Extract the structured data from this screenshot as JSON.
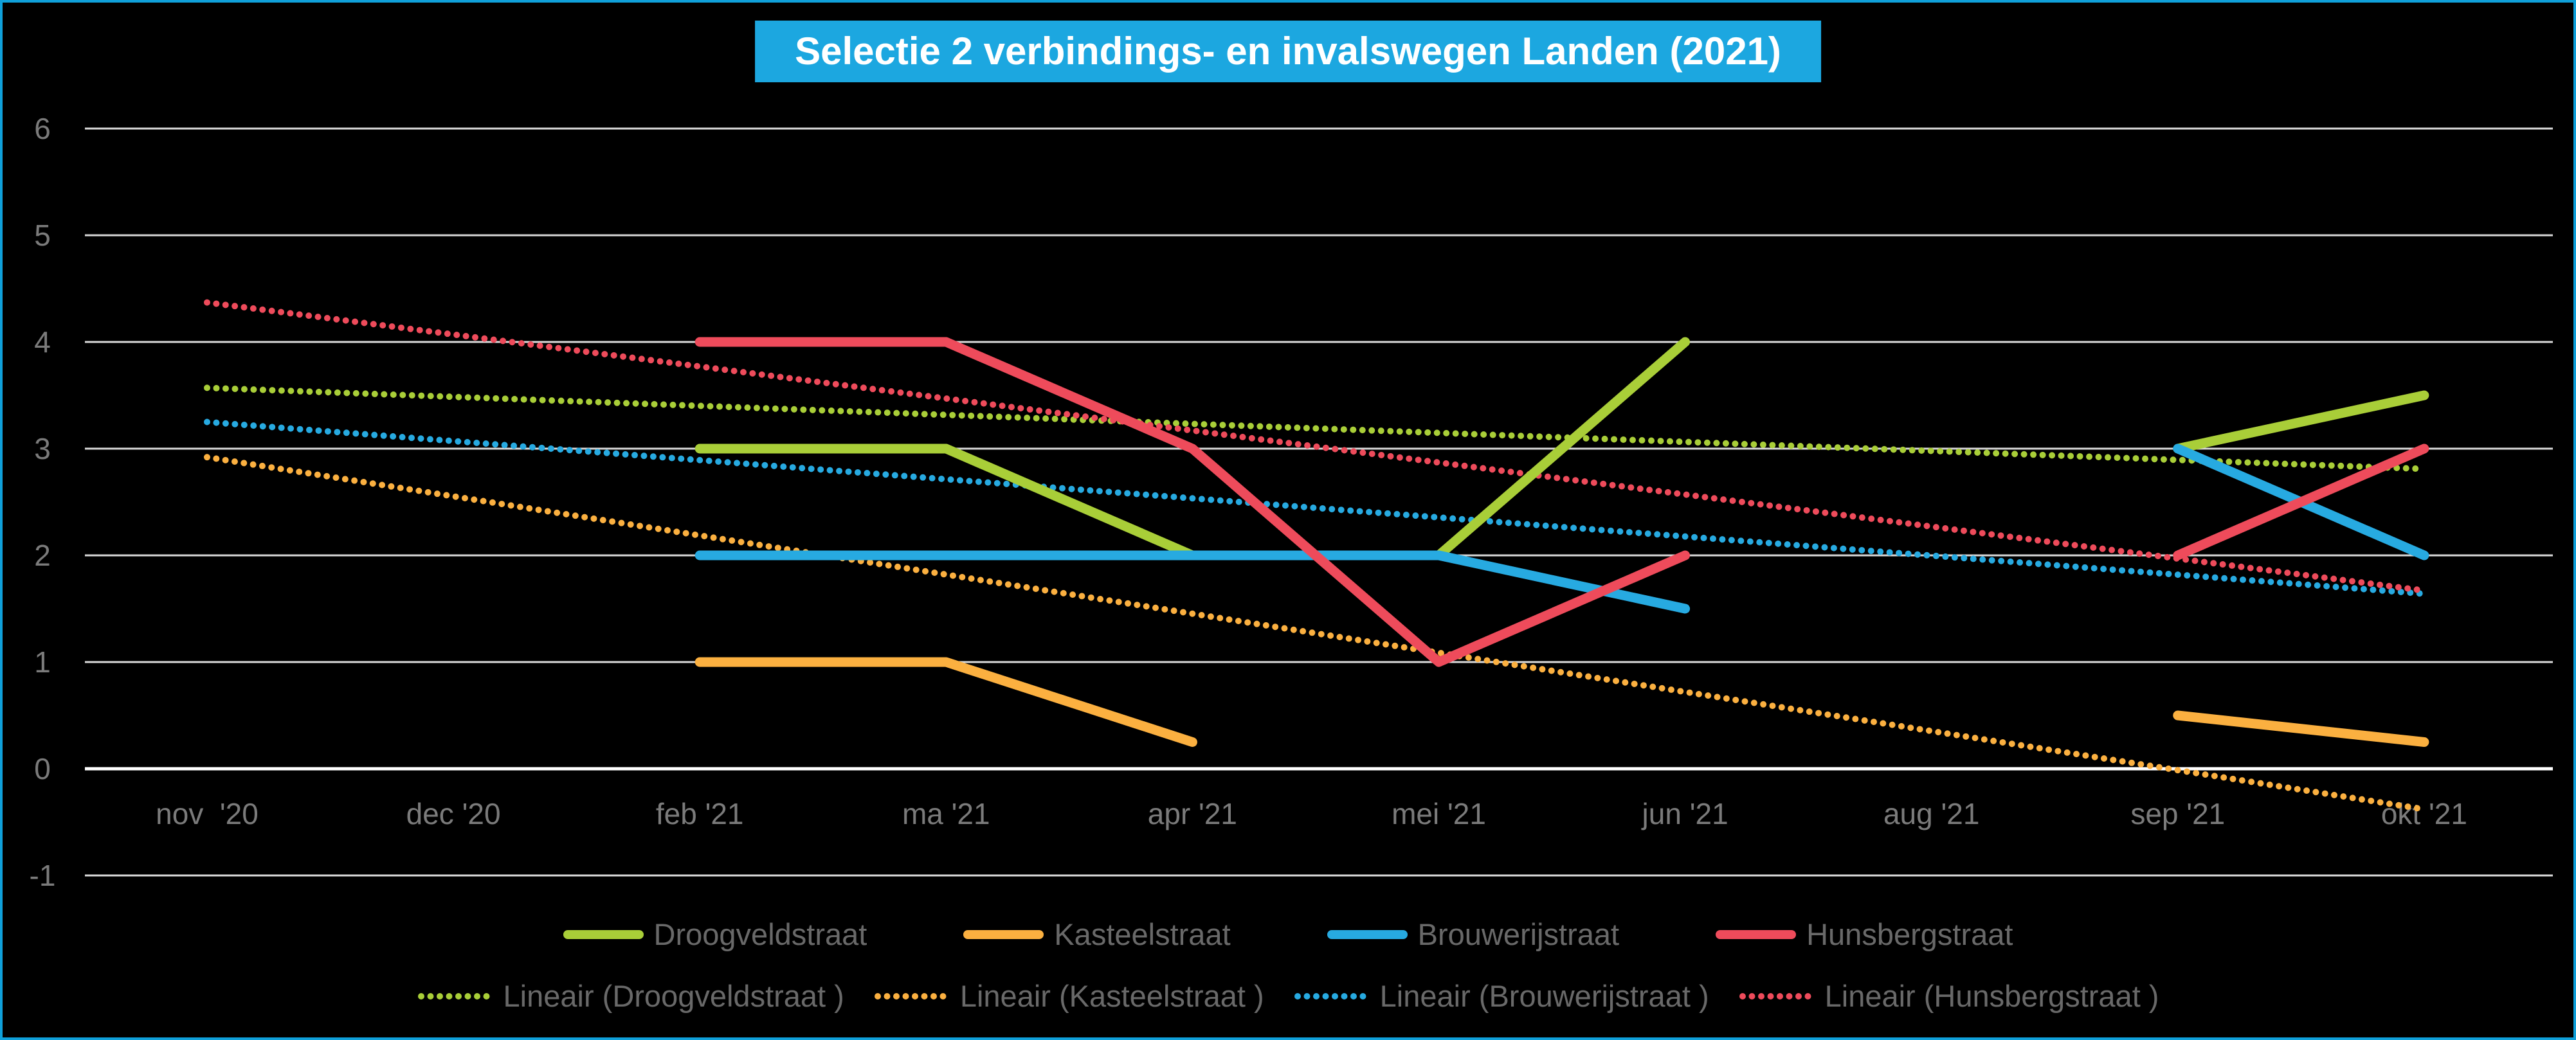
{
  "title": {
    "text": "Selectie 2 verbindings- en invalswegen Landen (2021)",
    "background": "#1CA7E0",
    "text_color": "#FFFFFF"
  },
  "colors": {
    "background": "#000000",
    "frame_border": "#0FA0DA",
    "gridline": "#D9D9D9",
    "zero_axis_line": "#FFFFFF",
    "axis_label": "#7B7B7B",
    "legend_text": "#696969"
  },
  "chart_data": {
    "type": "line",
    "categories": [
      "nov  '20",
      "dec '20",
      "feb '21",
      "ma '21",
      "apr '21",
      "mei '21",
      "jun '21",
      "aug '21",
      "sep '21",
      "okt '21"
    ],
    "series": [
      {
        "name": "Droogveldstraat",
        "color": "#A9CE38",
        "values": [
          null,
          null,
          3,
          3,
          2,
          2,
          4,
          null,
          3,
          3.5
        ]
      },
      {
        "name": "Kasteelstraat",
        "color": "#FBB040",
        "values": [
          null,
          null,
          1,
          1,
          0.25,
          null,
          null,
          null,
          0.5,
          0.25
        ]
      },
      {
        "name": "Brouwerijstraat",
        "color": "#27AAE1",
        "values": [
          null,
          null,
          2,
          2,
          2,
          2,
          1.5,
          null,
          3,
          2
        ]
      },
      {
        "name": "Hunsbergstraat",
        "color": "#EE4B5B",
        "values": [
          null,
          null,
          4,
          4,
          3,
          1,
          2,
          null,
          2,
          3
        ]
      }
    ],
    "trendlines": [
      {
        "name": "Lineair (Droogveldstraat )",
        "color": "#A9CE38",
        "start_value": 3.57,
        "end_value": 2.81
      },
      {
        "name": "Lineair (Kasteelstraat )",
        "color": "#FBB040",
        "start_value": 2.92,
        "end_value": -0.38
      },
      {
        "name": "Lineair (Brouwerijstraat )",
        "color": "#27AAE1",
        "start_value": 3.25,
        "end_value": 1.64
      },
      {
        "name": "Lineair (Hunsbergstraat )",
        "color": "#EE4B5B",
        "start_value": 4.37,
        "end_value": 1.67
      }
    ],
    "xlabel": "",
    "ylabel": "",
    "ylim": [
      -1,
      6
    ],
    "yticks": [
      6,
      5,
      4,
      3,
      2,
      1,
      0,
      -1
    ],
    "grid": "horizontal",
    "legend_position": "bottom"
  }
}
